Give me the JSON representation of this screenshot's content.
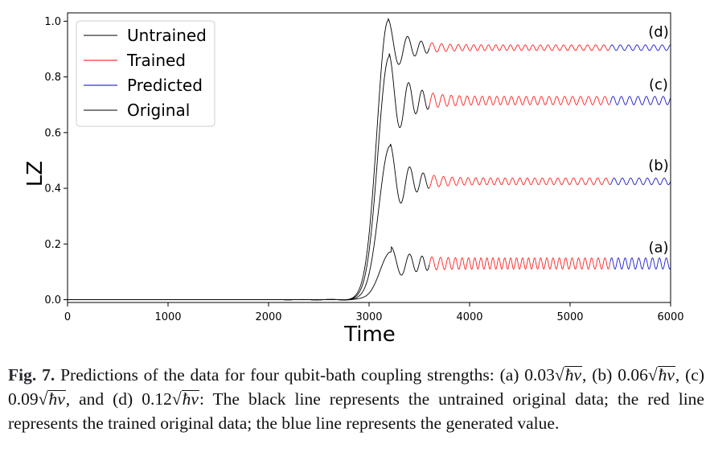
{
  "chart_data": {
    "type": "line",
    "title": "",
    "xlabel": "Time",
    "ylabel": "LZ",
    "xlim": [
      0,
      6000
    ],
    "ylim": [
      -0.01,
      1.03
    ],
    "x_ticks": [
      "0",
      "1000",
      "2000",
      "3000",
      "4000",
      "5000",
      "6000"
    ],
    "y_ticks": [
      "0.0",
      "0.2",
      "0.4",
      "0.6",
      "0.8",
      "1.0"
    ],
    "grid": false,
    "legend_position": "top-left",
    "legend": [
      {
        "name": "Untrained",
        "color": "#000000"
      },
      {
        "name": "Trained",
        "color": "#ff0000"
      },
      {
        "name": "Predicted",
        "color": "#0000cc"
      },
      {
        "name": "Original",
        "color": "#000000"
      }
    ],
    "segments": {
      "untrained_x_range": [
        0,
        3600
      ],
      "trained_x_range": [
        3600,
        5400
      ],
      "predicted_x_range": [
        5400,
        6000
      ]
    },
    "curves": [
      {
        "label": "(a)",
        "peak_time": 3220,
        "peak_value": 0.17,
        "steady_value": 0.13,
        "oscillation_amplitude": 0.02,
        "oscillation_period": 70
      },
      {
        "label": "(b)",
        "peak_time": 3210,
        "peak_value": 0.55,
        "steady_value": 0.425,
        "oscillation_amplitude": 0.012,
        "oscillation_period": 85
      },
      {
        "label": "(c)",
        "peak_time": 3200,
        "peak_value": 0.87,
        "steady_value": 0.715,
        "oscillation_amplitude": 0.015,
        "oscillation_period": 85
      },
      {
        "label": "(d)",
        "peak_time": 3190,
        "peak_value": 1.0,
        "steady_value": 0.905,
        "oscillation_amplitude": 0.01,
        "oscillation_period": 85
      }
    ]
  },
  "caption": {
    "fig_label": "Fig. 7.",
    "part1": "Predictions of the data for four qubit-bath coupling strengths: (a)",
    "coef_a": "0.03",
    "coef_b": "0.06",
    "coef_c": "0.09",
    "coef_d": "0.12",
    "sqrt_term": "ħv",
    "lbl_b": ", (b) ",
    "lbl_c": ", (c) ",
    "lbl_d": ", and (d) ",
    "part2": ": The black line represents the untrained original data; the red line represents the trained original data; the blue line represents the generated value."
  }
}
